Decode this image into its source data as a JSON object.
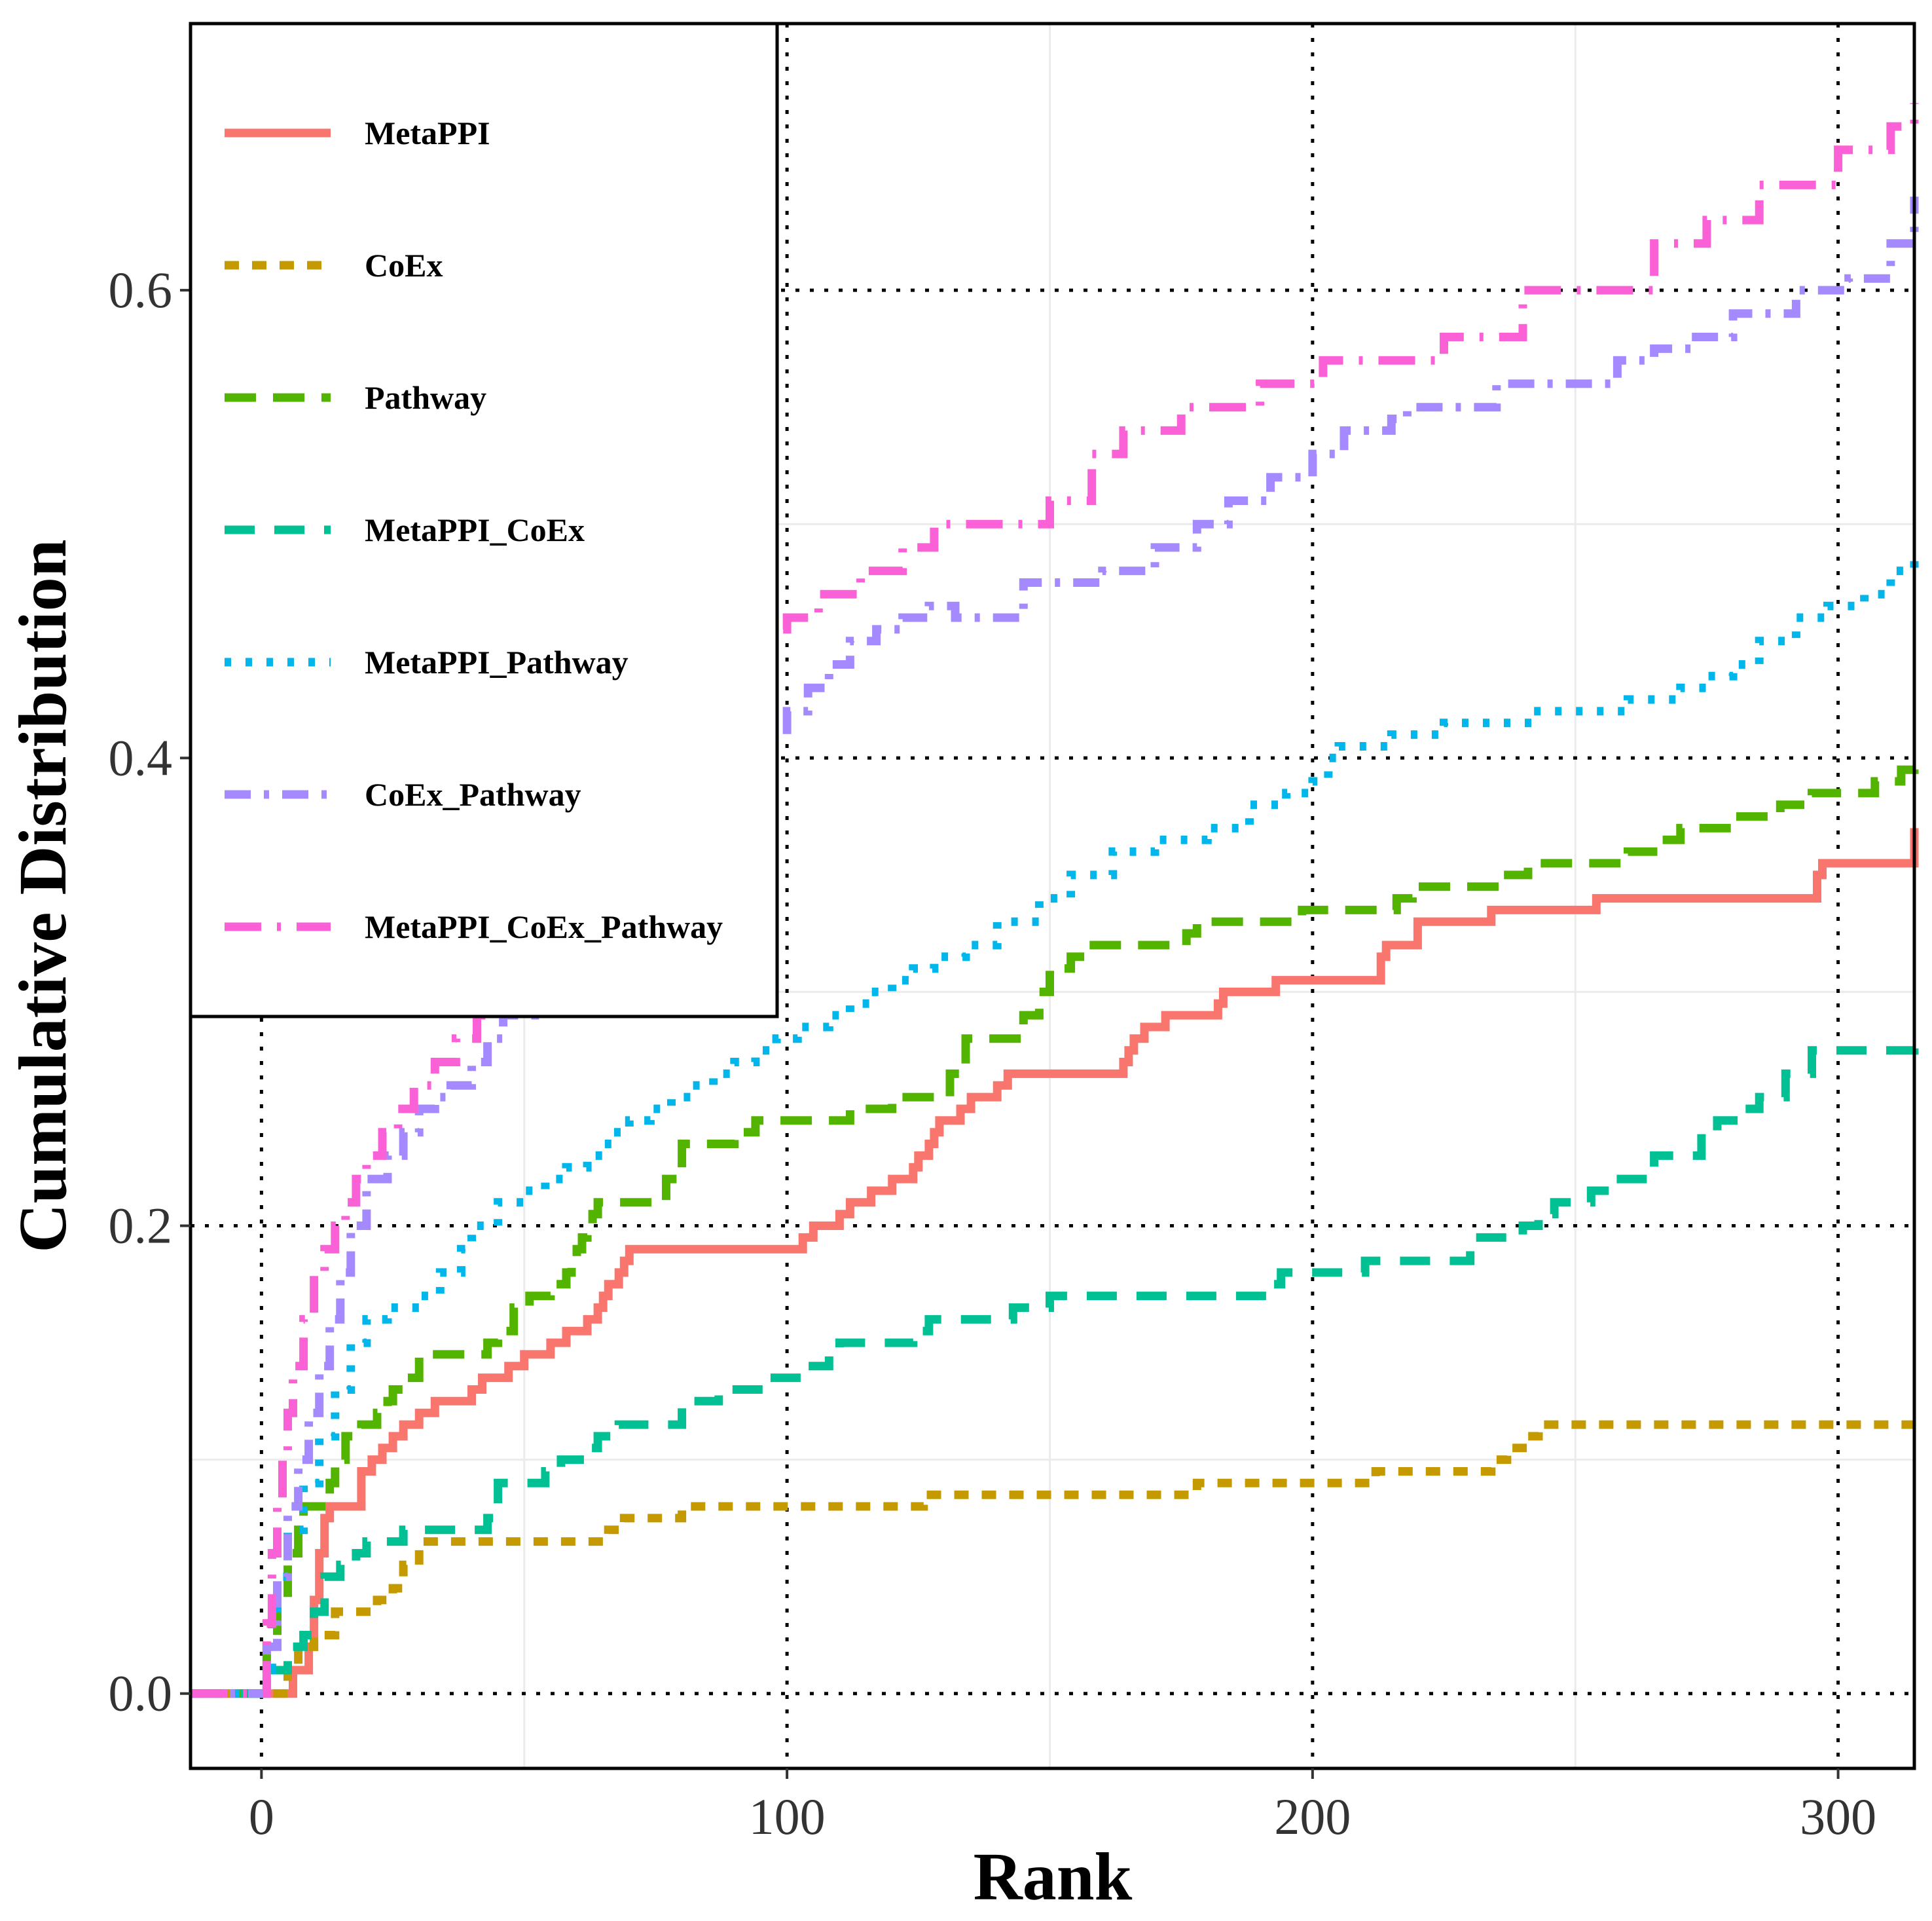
{
  "chart_data": {
    "type": "line",
    "title": "",
    "xlabel": "Rank",
    "ylabel": "Cumulative Distribution",
    "xlim": [
      -13.5,
      314.5
    ],
    "ylim": [
      -0.032,
      0.714
    ],
    "xticks": [
      0,
      100,
      200,
      300
    ],
    "xtick_labels": [
      "0",
      "100",
      "200",
      "300"
    ],
    "yticks": [
      0.0,
      0.2,
      0.4,
      0.6
    ],
    "ytick_labels": [
      "0.0",
      "0.2",
      "0.4",
      "0.6"
    ],
    "minor_grid_x": [
      50,
      150,
      250
    ],
    "minor_grid_y": [
      0.1,
      0.3,
      0.5
    ],
    "reference_lines": {
      "x": [
        0,
        100,
        200,
        300
      ],
      "y": [
        0.0,
        0.2,
        0.4,
        0.6
      ],
      "style": "dotted"
    },
    "legend_position": "top-left",
    "series": [
      {
        "name": "MetaPPI",
        "color": "#F8766D",
        "dash": "solid",
        "x": [
          -13.5,
          4,
          6,
          9,
          10,
          11,
          12,
          13,
          19,
          21,
          23,
          25,
          27,
          30,
          33,
          40,
          42,
          47,
          50,
          55,
          58,
          62,
          64,
          65,
          66,
          68,
          69,
          70,
          103,
          105,
          110,
          112,
          116,
          120,
          124,
          125,
          127,
          128,
          129,
          133,
          135,
          140,
          142,
          164,
          165,
          166,
          168,
          172,
          182,
          183,
          193,
          213,
          214,
          220,
          234,
          254,
          296,
          297,
          314.5
        ],
        "y": [
          0.0,
          0.0,
          0.01,
          0.02,
          0.04,
          0.06,
          0.075,
          0.08,
          0.095,
          0.1,
          0.105,
          0.11,
          0.115,
          0.12,
          0.125,
          0.13,
          0.135,
          0.14,
          0.145,
          0.15,
          0.155,
          0.16,
          0.165,
          0.17,
          0.175,
          0.18,
          0.185,
          0.19,
          0.195,
          0.2,
          0.205,
          0.21,
          0.215,
          0.22,
          0.225,
          0.23,
          0.235,
          0.24,
          0.245,
          0.25,
          0.255,
          0.26,
          0.265,
          0.27,
          0.275,
          0.28,
          0.285,
          0.29,
          0.295,
          0.3,
          0.305,
          0.315,
          0.32,
          0.33,
          0.335,
          0.34,
          0.35,
          0.355,
          0.37
        ]
      },
      {
        "name": "CoEx",
        "color": "#C49A00",
        "dash": "22,20",
        "x": [
          -13.5,
          3,
          5,
          7,
          10,
          14,
          22,
          25,
          27,
          30,
          64,
          66,
          69,
          75,
          80,
          123,
          126,
          175,
          178,
          180,
          185,
          212,
          215,
          234,
          237,
          241,
          243,
          314.5
        ],
        "y": [
          0.0,
          0.0,
          0.01,
          0.02,
          0.025,
          0.035,
          0.04,
          0.045,
          0.055,
          0.065,
          0.065,
          0.07,
          0.075,
          0.075,
          0.08,
          0.08,
          0.085,
          0.085,
          0.09,
          0.09,
          0.09,
          0.095,
          0.095,
          0.1,
          0.105,
          0.11,
          0.115,
          0.115
        ]
      },
      {
        "name": "Pathway",
        "color": "#53B400",
        "dash": "48,26",
        "x": [
          -13.5,
          0,
          1,
          3,
          5,
          7,
          8,
          13,
          14,
          16,
          19,
          22,
          24,
          25,
          27,
          30,
          42,
          43,
          45,
          48,
          51,
          55,
          58,
          59,
          60,
          61,
          62,
          63,
          64,
          73,
          77,
          80,
          90,
          94,
          112,
          120,
          131,
          134,
          141,
          145,
          148,
          150,
          154,
          157,
          176,
          178,
          198,
          216,
          219,
          236,
          241,
          260,
          266,
          270,
          280,
          289,
          295,
          307,
          312,
          314.5
        ],
        "y": [
          0.0,
          0.0,
          0.02,
          0.04,
          0.06,
          0.07,
          0.08,
          0.09,
          0.1,
          0.11,
          0.115,
          0.12,
          0.125,
          0.13,
          0.135,
          0.145,
          0.145,
          0.15,
          0.155,
          0.165,
          0.17,
          0.175,
          0.18,
          0.185,
          0.19,
          0.195,
          0.2,
          0.205,
          0.21,
          0.21,
          0.22,
          0.235,
          0.24,
          0.245,
          0.25,
          0.255,
          0.265,
          0.28,
          0.28,
          0.29,
          0.3,
          0.31,
          0.315,
          0.32,
          0.325,
          0.33,
          0.335,
          0.34,
          0.345,
          0.35,
          0.355,
          0.36,
          0.365,
          0.37,
          0.375,
          0.38,
          0.385,
          0.39,
          0.395,
          0.4
        ]
      },
      {
        "name": "MetaPPI_CoEx",
        "color": "#00C094",
        "dash": "46,30",
        "x": [
          -13.5,
          0,
          1,
          5,
          8,
          10,
          12,
          15,
          18,
          20,
          27,
          43,
          45,
          54,
          57,
          62,
          64,
          68,
          80,
          87,
          96,
          103,
          108,
          110,
          124,
          127,
          143,
          150,
          152,
          192,
          194,
          200,
          210,
          230,
          240,
          243,
          246,
          253,
          257,
          265,
          274,
          277,
          282,
          285,
          290,
          295,
          314.5
        ],
        "y": [
          0.0,
          0.0,
          0.01,
          0.02,
          0.025,
          0.035,
          0.05,
          0.055,
          0.06,
          0.065,
          0.07,
          0.075,
          0.09,
          0.095,
          0.1,
          0.105,
          0.11,
          0.115,
          0.125,
          0.13,
          0.135,
          0.14,
          0.145,
          0.15,
          0.155,
          0.16,
          0.165,
          0.17,
          0.17,
          0.175,
          0.18,
          0.18,
          0.185,
          0.195,
          0.2,
          0.205,
          0.21,
          0.215,
          0.22,
          0.23,
          0.24,
          0.245,
          0.25,
          0.255,
          0.265,
          0.275,
          0.28
        ]
      },
      {
        "name": "MetaPPI_Pathway",
        "color": "#00B6EB",
        "dash": "10,22",
        "x": [
          -13.5,
          0,
          1,
          2,
          3,
          5,
          8,
          11,
          14,
          17,
          20,
          24,
          30,
          34,
          38,
          40,
          45,
          50,
          54,
          58,
          62,
          65,
          67,
          70,
          74,
          78,
          82,
          86,
          90,
          94,
          98,
          102,
          108,
          112,
          116,
          120,
          124,
          128,
          134,
          140,
          148,
          154,
          162,
          170,
          180,
          188,
          195,
          200,
          203,
          205,
          215,
          225,
          242,
          260,
          270,
          275,
          280,
          285,
          292,
          298,
          305,
          310,
          314.5
        ],
        "y": [
          0.0,
          0.0,
          0.01,
          0.03,
          0.05,
          0.07,
          0.09,
          0.11,
          0.13,
          0.15,
          0.16,
          0.165,
          0.17,
          0.18,
          0.19,
          0.2,
          0.21,
          0.215,
          0.22,
          0.225,
          0.23,
          0.235,
          0.24,
          0.245,
          0.25,
          0.255,
          0.26,
          0.265,
          0.27,
          0.275,
          0.28,
          0.285,
          0.29,
          0.295,
          0.3,
          0.305,
          0.31,
          0.315,
          0.32,
          0.33,
          0.34,
          0.35,
          0.36,
          0.365,
          0.37,
          0.38,
          0.385,
          0.39,
          0.4,
          0.405,
          0.41,
          0.415,
          0.42,
          0.425,
          0.43,
          0.435,
          0.44,
          0.45,
          0.46,
          0.465,
          0.47,
          0.48,
          0.49
        ]
      },
      {
        "name": "CoEx_Pathway",
        "color": "#A58AFF",
        "dash": "40,20,8,20",
        "x": [
          -13.5,
          0,
          1,
          3,
          5,
          7,
          9,
          11,
          13,
          15,
          17,
          20,
          24,
          27,
          30,
          33,
          36,
          40,
          43,
          46,
          52,
          56,
          60,
          64,
          68,
          72,
          76,
          80,
          86,
          90,
          96,
          100,
          104,
          108,
          112,
          117,
          122,
          127,
          132,
          145,
          152,
          160,
          170,
          178,
          184,
          192,
          200,
          206,
          215,
          218,
          225,
          235,
          258,
          265,
          272,
          280,
          292,
          302,
          310,
          314.5
        ],
        "y": [
          0.0,
          0.0,
          0.02,
          0.05,
          0.08,
          0.1,
          0.12,
          0.14,
          0.16,
          0.18,
          0.2,
          0.22,
          0.23,
          0.24,
          0.25,
          0.255,
          0.26,
          0.27,
          0.28,
          0.29,
          0.3,
          0.31,
          0.32,
          0.33,
          0.34,
          0.355,
          0.37,
          0.38,
          0.39,
          0.4,
          0.41,
          0.42,
          0.43,
          0.44,
          0.45,
          0.455,
          0.46,
          0.465,
          0.46,
          0.475,
          0.475,
          0.48,
          0.49,
          0.5,
          0.51,
          0.52,
          0.53,
          0.54,
          0.545,
          0.55,
          0.55,
          0.56,
          0.57,
          0.575,
          0.58,
          0.59,
          0.6,
          0.605,
          0.62,
          0.64
        ]
      },
      {
        "name": "MetaPPI_CoEx_Pathway",
        "color": "#FB61D7",
        "dash": "56,24,6,24",
        "x": [
          -13.5,
          0,
          1,
          2,
          3,
          4,
          5,
          6,
          8,
          10,
          12,
          14,
          16,
          18,
          20,
          23,
          26,
          29,
          33,
          37,
          41,
          45,
          50,
          55,
          60,
          66,
          70,
          75,
          80,
          85,
          90,
          96,
          100,
          106,
          114,
          122,
          128,
          134,
          150,
          158,
          164,
          175,
          190,
          202,
          225,
          240,
          265,
          275,
          285,
          300,
          310,
          314.5
        ],
        "y": [
          0.0,
          0.0,
          0.03,
          0.06,
          0.08,
          0.1,
          0.12,
          0.14,
          0.16,
          0.18,
          0.19,
          0.2,
          0.21,
          0.22,
          0.23,
          0.24,
          0.25,
          0.26,
          0.27,
          0.28,
          0.29,
          0.3,
          0.32,
          0.34,
          0.36,
          0.38,
          0.4,
          0.42,
          0.43,
          0.44,
          0.45,
          0.455,
          0.46,
          0.47,
          0.48,
          0.49,
          0.5,
          0.5,
          0.51,
          0.53,
          0.54,
          0.55,
          0.56,
          0.57,
          0.58,
          0.6,
          0.62,
          0.63,
          0.645,
          0.66,
          0.67,
          0.68
        ]
      }
    ]
  }
}
